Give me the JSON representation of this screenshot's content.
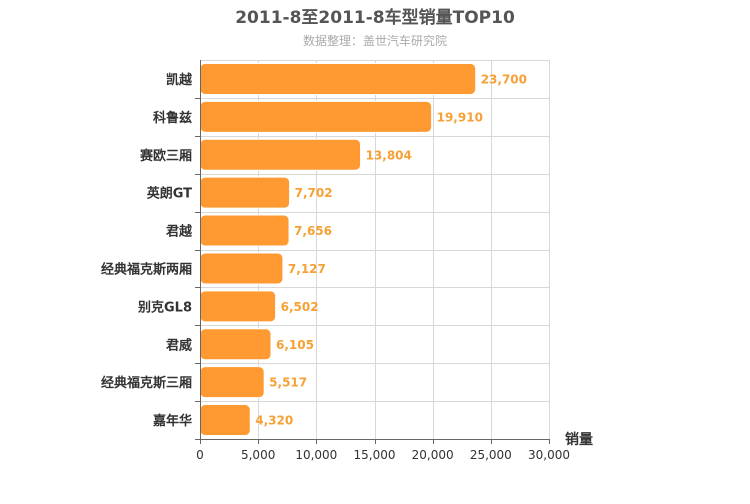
{
  "chart_data": {
    "type": "bar",
    "orientation": "horizontal",
    "title": "2011-8至2011-8车型销量TOP10",
    "subtitle": "数据整理：盖世汽车研究院",
    "xlabel": "销量",
    "ylabel": "",
    "categories": [
      "凯越",
      "科鲁兹",
      "赛欧三厢",
      "英朗GT",
      "君越",
      "经典福克斯两厢",
      "别克GL8",
      "君威",
      "经典福克斯三厢",
      "嘉年华"
    ],
    "values": [
      23700,
      19910,
      13804,
      7702,
      7656,
      7127,
      6502,
      6105,
      5517,
      4320
    ],
    "value_labels": [
      "23,700",
      "19,910",
      "13,804",
      "7,702",
      "7,656",
      "7,127",
      "6,502",
      "6,105",
      "5,517",
      "4,320"
    ],
    "xlim": [
      0,
      30000
    ],
    "xticks": [
      0,
      5000,
      10000,
      15000,
      20000,
      25000,
      30000
    ],
    "xtick_labels": [
      "0",
      "5,000",
      "10,000",
      "15,000",
      "20,000",
      "25,000",
      "30,000"
    ],
    "grid": true,
    "legend": "none",
    "colors": {
      "bar": "#ff9a33",
      "bar_stroke": "#ffffff",
      "value_label": "#f7a035",
      "title": "#555555",
      "subtitle": "#aaaaaa",
      "grid": "#d8d8d8",
      "axis": "#666666",
      "tick_text": "#333333"
    }
  }
}
